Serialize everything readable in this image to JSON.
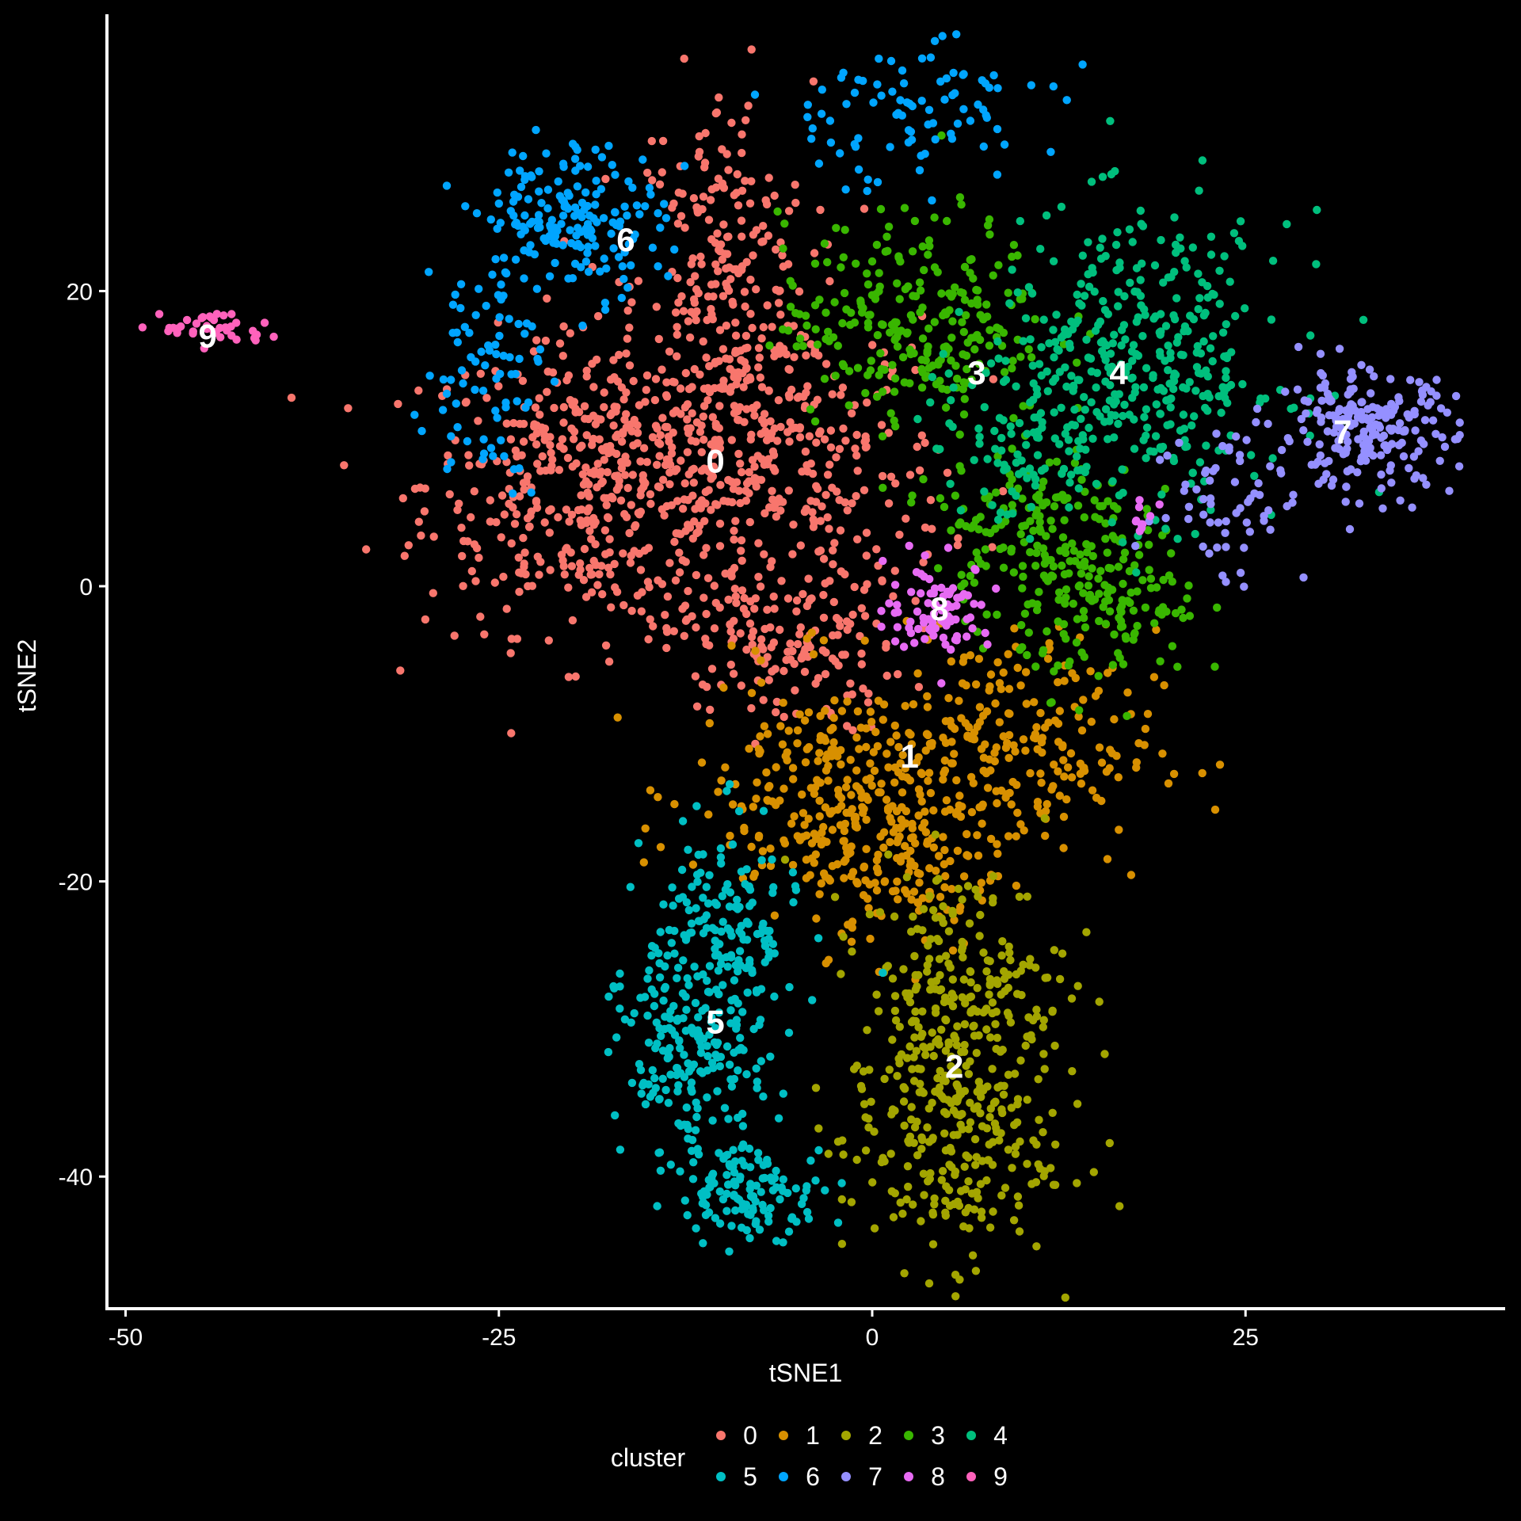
{
  "chart_data": {
    "type": "scatter",
    "title": "",
    "xlabel": "tSNE1",
    "ylabel": "tSNE2",
    "xlim": [
      -50,
      42
    ],
    "ylim": [
      -47,
      38
    ],
    "x_ticks": [
      -50,
      -25,
      0,
      25
    ],
    "x_tick_labels": [
      "-50",
      "-25",
      "0",
      "25"
    ],
    "y_ticks": [
      -40,
      -20,
      0,
      20
    ],
    "y_tick_labels": [
      "-40",
      "-20",
      "0",
      "20"
    ],
    "grid": false,
    "background": "#000000",
    "legend": {
      "title": "cluster",
      "position": "bottom"
    },
    "series": [
      {
        "name": "0",
        "color": "#F8766D",
        "label_pos": [
          -10.5,
          8.5
        ],
        "blobs": [
          {
            "c": [
              -18,
              7
            ],
            "s": [
              6,
              5
            ],
            "n": 520
          },
          {
            "c": [
              -10,
              20
            ],
            "s": [
              3,
              7
            ],
            "n": 240
          },
          {
            "c": [
              -6,
              -4
            ],
            "s": [
              4,
              3
            ],
            "n": 150
          },
          {
            "c": [
              -5,
              8
            ],
            "s": [
              5,
              5
            ],
            "n": 260
          }
        ]
      },
      {
        "name": "1",
        "color": "#D89000",
        "label_pos": [
          2.5,
          -11.5
        ],
        "blobs": [
          {
            "c": [
              -2,
              -14
            ],
            "s": [
              5,
              4
            ],
            "n": 280
          },
          {
            "c": [
              9,
              -11
            ],
            "s": [
              5,
              4
            ],
            "n": 220
          },
          {
            "c": [
              2,
              -19
            ],
            "s": [
              3,
              3
            ],
            "n": 110
          }
        ]
      },
      {
        "name": "2",
        "color": "#A3A500",
        "label_pos": [
          5.5,
          -32.5
        ],
        "blobs": [
          {
            "c": [
              6,
              -28
            ],
            "s": [
              3.5,
              4.5
            ],
            "n": 260
          },
          {
            "c": [
              5,
              -38
            ],
            "s": [
              3.5,
              4
            ],
            "n": 220
          }
        ]
      },
      {
        "name": "3",
        "color": "#39B600",
        "label_pos": [
          7,
          14.5
        ],
        "blobs": [
          {
            "c": [
              3,
              18
            ],
            "s": [
              4.5,
              3.5
            ],
            "n": 260
          },
          {
            "c": [
              11,
              4
            ],
            "s": [
              3.5,
              3
            ],
            "n": 180
          },
          {
            "c": [
              16,
              -2
            ],
            "s": [
              3,
              2.5
            ],
            "n": 120
          }
        ]
      },
      {
        "name": "4",
        "color": "#00BF7D",
        "label_pos": [
          16.5,
          14.5
        ],
        "blobs": [
          {
            "c": [
              18,
              15
            ],
            "s": [
              5,
              5
            ],
            "n": 380
          },
          {
            "c": [
              10,
              10
            ],
            "s": [
              3,
              3
            ],
            "n": 90
          }
        ]
      },
      {
        "name": "5",
        "color": "#00BFC4",
        "label_pos": [
          -10.5,
          -29.5
        ],
        "blobs": [
          {
            "c": [
              -10,
              -23
            ],
            "s": [
              2.5,
              3.5
            ],
            "n": 150
          },
          {
            "c": [
              -12,
              -32
            ],
            "s": [
              2.5,
              3.5
            ],
            "n": 200
          },
          {
            "c": [
              -8,
              -41
            ],
            "s": [
              2.5,
              1.5
            ],
            "n": 120
          }
        ]
      },
      {
        "name": "6",
        "color": "#00A5FF",
        "label_pos": [
          -16.5,
          23.5
        ],
        "blobs": [
          {
            "c": [
              -20,
              25
            ],
            "s": [
              3,
              2.5
            ],
            "n": 180
          },
          {
            "c": [
              -26,
              15
            ],
            "s": [
              2,
              4
            ],
            "n": 80
          },
          {
            "c": [
              2,
              32
            ],
            "s": [
              5,
              2.5
            ],
            "n": 90
          }
        ]
      },
      {
        "name": "7",
        "color": "#9590FF",
        "label_pos": [
          31.5,
          10.5
        ],
        "blobs": [
          {
            "c": [
              33,
              10.5
            ],
            "s": [
              3,
              2
            ],
            "n": 220
          },
          {
            "c": [
              24,
              6
            ],
            "s": [
              2.5,
              3
            ],
            "n": 60
          }
        ]
      },
      {
        "name": "8",
        "color": "#E76BF3",
        "label_pos": [
          4.5,
          -1.5
        ],
        "blobs": [
          {
            "c": [
              4.5,
              -1.5
            ],
            "s": [
              1.8,
              1.5
            ],
            "n": 90
          },
          {
            "c": [
              18,
              4.5
            ],
            "s": [
              0.5,
              0.6
            ],
            "n": 10
          }
        ]
      },
      {
        "name": "9",
        "color": "#FF62BC",
        "label_pos": [
          -44.5,
          17
        ],
        "blobs": [
          {
            "c": [
              -44,
              17.5
            ],
            "s": [
              1.8,
              0.6
            ],
            "n": 40
          }
        ]
      }
    ]
  }
}
